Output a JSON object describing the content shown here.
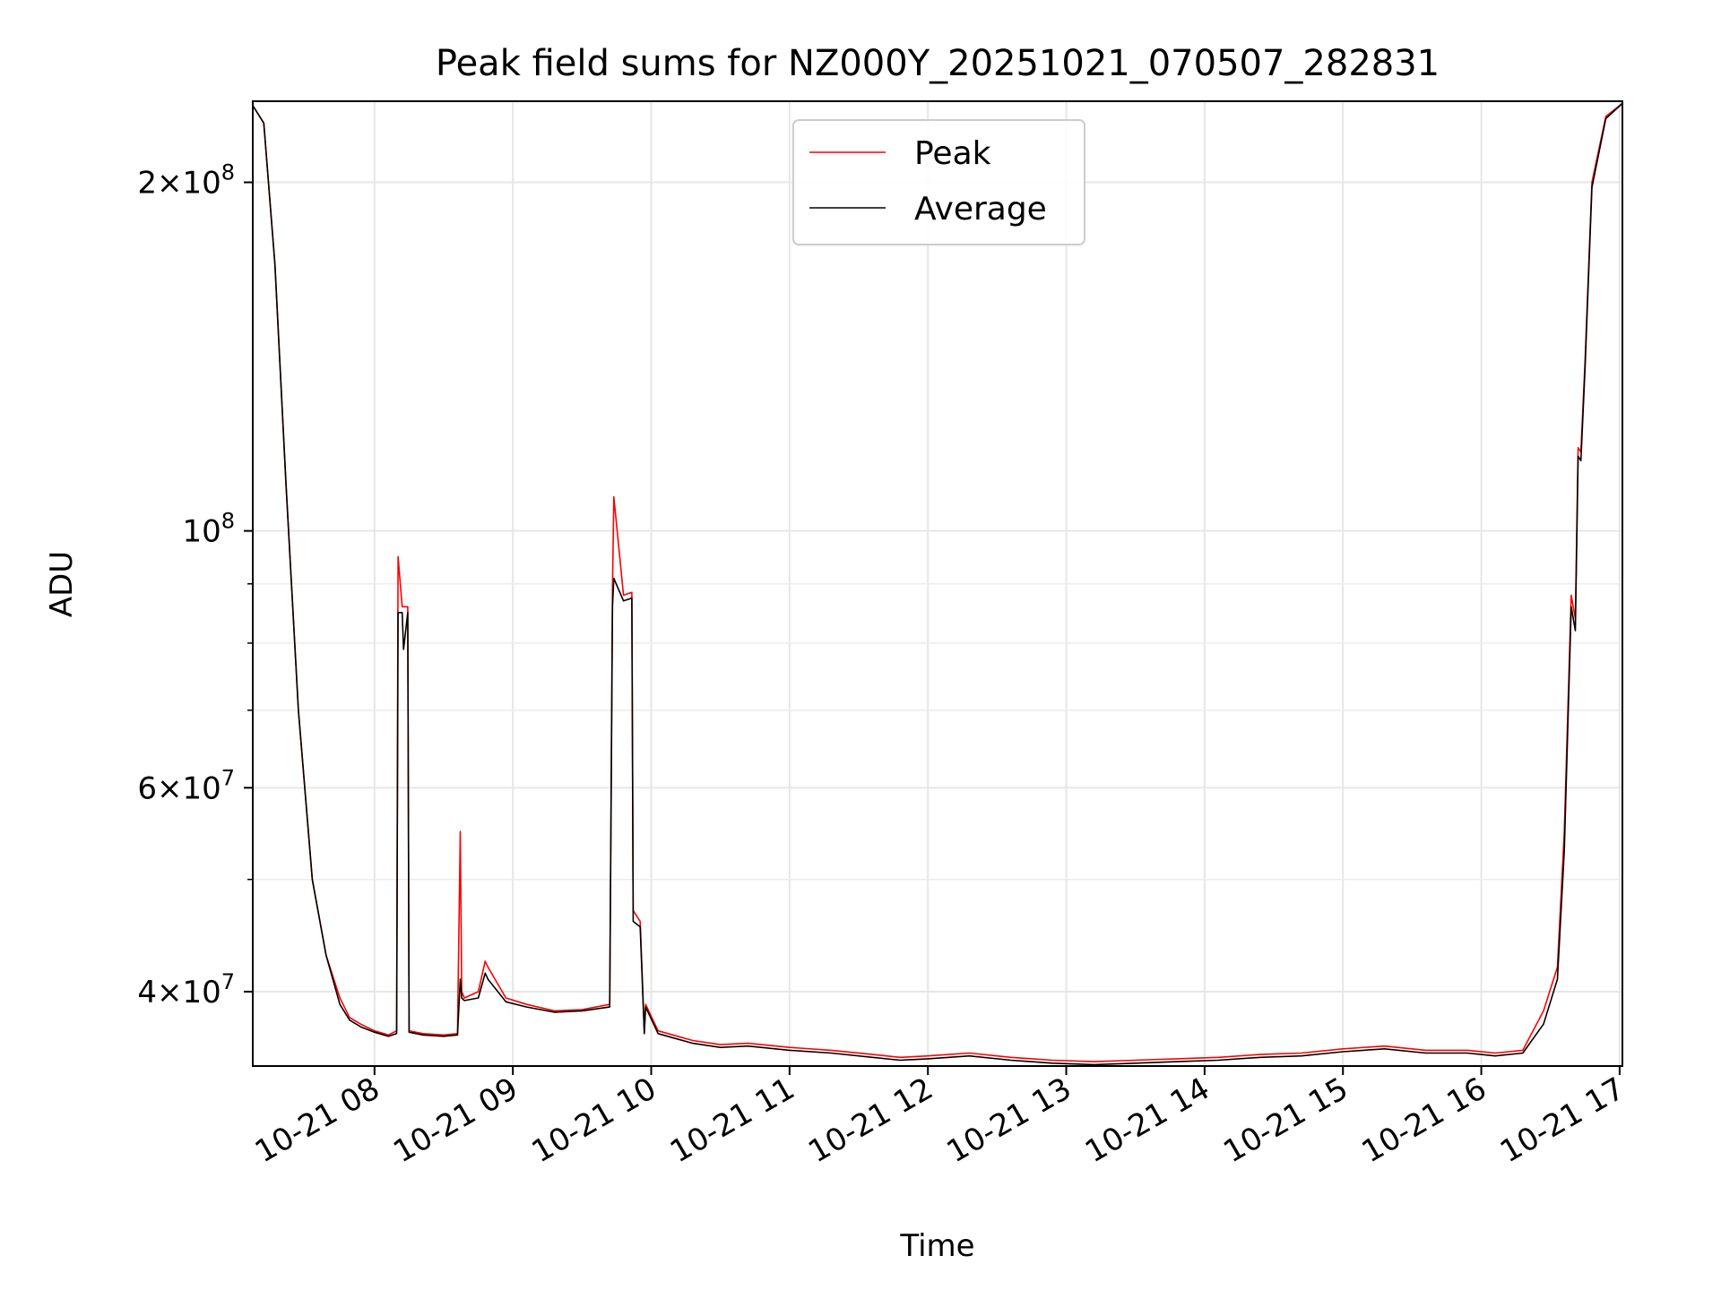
{
  "chart_data": {
    "type": "line",
    "title": "Peak field sums for NZ000Y_20251021_070507_282831",
    "xlabel": "Time",
    "ylabel": "ADU",
    "yscale": "log",
    "ylim": [
      34500000,
      235000000
    ],
    "xlim_hours": [
      7.12,
      17.02
    ],
    "grid": true,
    "legend_position": "upper center",
    "x_ticks": [
      {
        "value": 8,
        "label": "10-21 08"
      },
      {
        "value": 9,
        "label": "10-21 09"
      },
      {
        "value": 10,
        "label": "10-21 10"
      },
      {
        "value": 11,
        "label": "10-21 11"
      },
      {
        "value": 12,
        "label": "10-21 12"
      },
      {
        "value": 13,
        "label": "10-21 13"
      },
      {
        "value": 14,
        "label": "10-21 14"
      },
      {
        "value": 15,
        "label": "10-21 15"
      },
      {
        "value": 16,
        "label": "10-21 16"
      },
      {
        "value": 17,
        "label": "10-21 17"
      }
    ],
    "y_ticks": [
      {
        "value": 40000000,
        "mant": "4",
        "exp": "7"
      },
      {
        "value": 60000000,
        "mant": "6",
        "exp": "7"
      },
      {
        "value": 100000000,
        "mant": "",
        "exp": "8"
      },
      {
        "value": 200000000,
        "mant": "2",
        "exp": "8"
      }
    ],
    "y_minor_ticks": [
      50000000,
      70000000,
      80000000,
      90000000
    ],
    "series": [
      {
        "name": "Peak",
        "color": "#ff0000",
        "x": [
          7.12,
          7.2,
          7.28,
          7.36,
          7.45,
          7.55,
          7.65,
          7.75,
          7.82,
          7.9,
          8.0,
          8.1,
          8.16,
          8.17,
          8.2,
          8.21,
          8.24,
          8.25,
          8.35,
          8.5,
          8.6,
          8.62,
          8.63,
          8.65,
          8.75,
          8.8,
          8.82,
          8.95,
          9.1,
          9.3,
          9.5,
          9.7,
          9.72,
          9.73,
          9.8,
          9.86,
          9.87,
          9.92,
          9.95,
          9.96,
          10.05,
          10.3,
          10.5,
          10.7,
          11.0,
          11.3,
          11.6,
          11.8,
          12.0,
          12.3,
          12.6,
          12.9,
          13.2,
          13.5,
          13.8,
          14.1,
          14.4,
          14.7,
          15.0,
          15.3,
          15.6,
          15.9,
          16.1,
          16.3,
          16.45,
          16.55,
          16.6,
          16.65,
          16.68,
          16.7,
          16.72,
          16.75,
          16.8,
          16.9,
          17.02
        ],
        "y": [
          233000000,
          225000000,
          170000000,
          110000000,
          70000000,
          50000000,
          43000000,
          39500000,
          38000000,
          37500000,
          37000000,
          36700000,
          37000000,
          95000000,
          86000000,
          86000000,
          86000000,
          37000000,
          36800000,
          36700000,
          36800000,
          55000000,
          40000000,
          39500000,
          40000000,
          42500000,
          42000000,
          39500000,
          39000000,
          38500000,
          38600000,
          39000000,
          89000000,
          107000000,
          88000000,
          88500000,
          47000000,
          46000000,
          37000000,
          39000000,
          37000000,
          36300000,
          36000000,
          36100000,
          35800000,
          35600000,
          35300000,
          35100000,
          35200000,
          35400000,
          35100000,
          34900000,
          34800000,
          34900000,
          35000000,
          35100000,
          35300000,
          35400000,
          35700000,
          35900000,
          35600000,
          35600000,
          35400000,
          35600000,
          38500000,
          42000000,
          55000000,
          88000000,
          84000000,
          118000000,
          117000000,
          140000000,
          200000000,
          228000000,
          234000000
        ]
      },
      {
        "name": "Average",
        "color": "#000000",
        "x": [
          7.12,
          7.2,
          7.28,
          7.36,
          7.45,
          7.55,
          7.65,
          7.75,
          7.82,
          7.9,
          8.0,
          8.1,
          8.16,
          8.17,
          8.2,
          8.21,
          8.24,
          8.25,
          8.35,
          8.5,
          8.6,
          8.62,
          8.63,
          8.65,
          8.75,
          8.8,
          8.82,
          8.95,
          9.1,
          9.3,
          9.5,
          9.7,
          9.72,
          9.73,
          9.8,
          9.86,
          9.87,
          9.92,
          9.95,
          9.96,
          10.05,
          10.3,
          10.5,
          10.7,
          11.0,
          11.3,
          11.6,
          11.8,
          12.0,
          12.3,
          12.6,
          12.9,
          13.2,
          13.5,
          13.8,
          14.1,
          14.4,
          14.7,
          15.0,
          15.3,
          15.6,
          15.9,
          16.1,
          16.3,
          16.45,
          16.55,
          16.6,
          16.65,
          16.68,
          16.7,
          16.72,
          16.75,
          16.8,
          16.9,
          17.02
        ],
        "y": [
          233000000,
          225000000,
          170000000,
          110000000,
          70000000,
          50000000,
          43000000,
          39000000,
          37800000,
          37300000,
          36900000,
          36600000,
          36800000,
          85000000,
          85000000,
          79000000,
          85000000,
          36900000,
          36700000,
          36600000,
          36700000,
          41000000,
          39500000,
          39300000,
          39500000,
          41500000,
          41000000,
          39200000,
          38800000,
          38400000,
          38500000,
          38800000,
          86000000,
          91000000,
          87000000,
          87500000,
          46000000,
          45500000,
          36800000,
          38800000,
          36800000,
          36100000,
          35800000,
          35900000,
          35600000,
          35400000,
          35100000,
          34900000,
          35000000,
          35200000,
          34900000,
          34700000,
          34600000,
          34700000,
          34800000,
          34900000,
          35100000,
          35200000,
          35500000,
          35700000,
          35400000,
          35400000,
          35200000,
          35400000,
          37500000,
          41000000,
          53000000,
          86000000,
          82000000,
          116000000,
          115000000,
          138000000,
          198000000,
          227000000,
          234000000
        ]
      }
    ]
  }
}
